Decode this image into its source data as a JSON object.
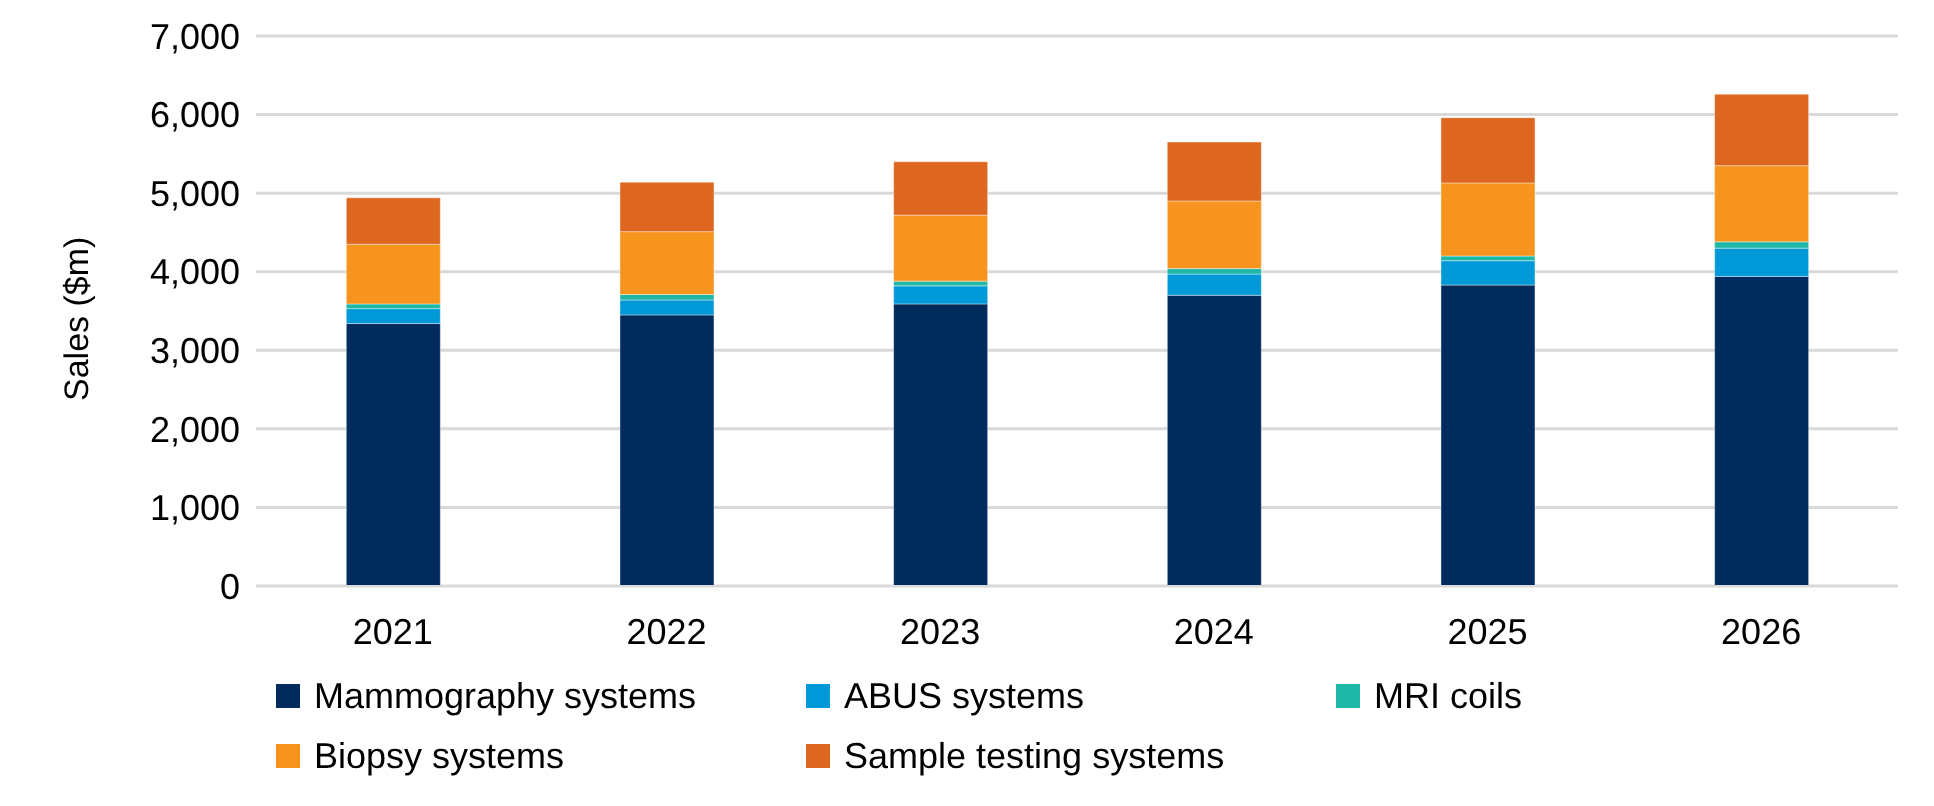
{
  "chart_data": {
    "type": "bar",
    "stacked": true,
    "ylabel": "Sales ($m)",
    "categories": [
      "2021",
      "2022",
      "2023",
      "2024",
      "2025",
      "2026"
    ],
    "series": [
      {
        "name": "Mammography systems",
        "color": "#002b5c",
        "values": [
          3340,
          3450,
          3590,
          3700,
          3830,
          3940
        ]
      },
      {
        "name": "ABUS systems",
        "color": "#0099d8",
        "values": [
          190,
          190,
          230,
          270,
          310,
          360
        ]
      },
      {
        "name": "MRI coils",
        "color": "#1fb8a6",
        "values": [
          60,
          70,
          60,
          70,
          60,
          80
        ]
      },
      {
        "name": "Biopsy systems",
        "color": "#f7941d",
        "values": [
          760,
          800,
          840,
          860,
          930,
          970
        ]
      },
      {
        "name": "Sample testing systems",
        "color": "#dd671e",
        "values": [
          590,
          630,
          680,
          750,
          830,
          910
        ]
      }
    ],
    "ylim": [
      0,
      7000
    ],
    "yticks": [
      0,
      {
        "value": 1000,
        "label": "1,000"
      },
      {
        "value": 2000,
        "label": "2,000"
      },
      {
        "value": 3000,
        "label": "3,000"
      },
      {
        "value": 4000,
        "label": "4,000"
      },
      {
        "value": 5000,
        "label": "5,000"
      },
      {
        "value": 6000,
        "label": "6,000"
      },
      {
        "value": 7000,
        "label": "7,000"
      }
    ],
    "grid": "y",
    "legend": "bottom"
  }
}
